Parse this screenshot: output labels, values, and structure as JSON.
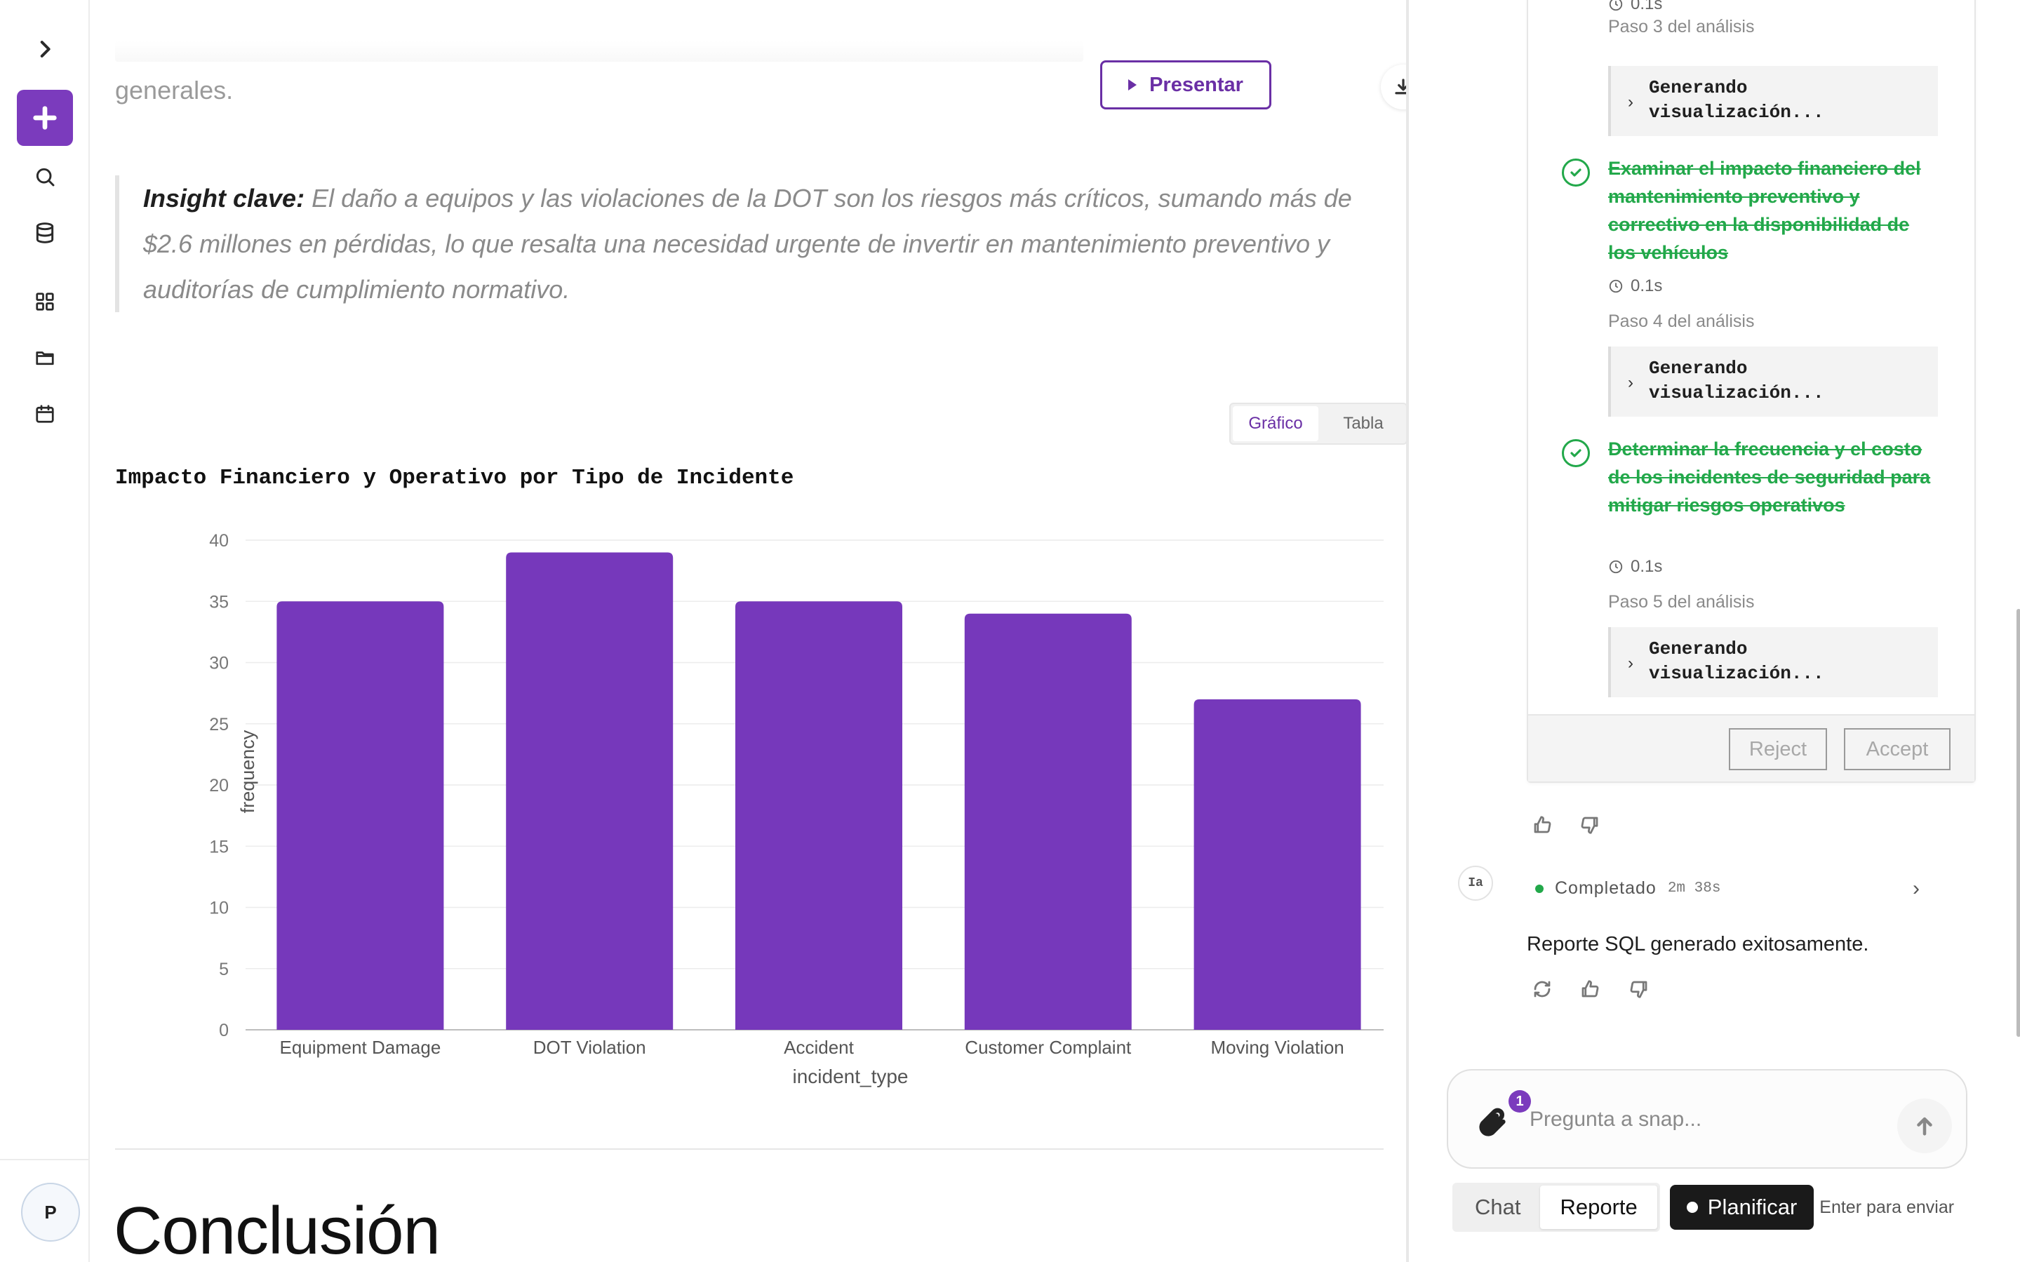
{
  "rail": {
    "avatar_initial": "P"
  },
  "report": {
    "faded_text": "generales.",
    "present_label": "Presentar",
    "insight_lead": "Insight clave:",
    "insight_body": "El daño a equipos y las violaciones de la DOT son los riesgos más críticos, sumando más de $2.6 millones en pérdidas, lo que resalta una necesidad urgente de invertir en mantenimiento preventivo y auditorías de cumplimiento normativo.",
    "view_tabs": [
      "Gráfico",
      "Tabla"
    ],
    "active_view": "Gráfico",
    "conclusion_heading": "Conclusión"
  },
  "chart_data": {
    "type": "bar",
    "title": "Impacto Financiero y Operativo por Tipo de Incidente",
    "xlabel": "incident_type",
    "ylabel": "frequency",
    "categories": [
      "Equipment Damage",
      "DOT Violation",
      "Accident",
      "Customer Complaint",
      "Moving Violation"
    ],
    "values": [
      35,
      39,
      35,
      34,
      27
    ],
    "ylim": [
      0,
      40
    ],
    "yticks": [
      0,
      5,
      10,
      15,
      20,
      25,
      30,
      35,
      40
    ],
    "grid": true,
    "bar_color": "#7638bb"
  },
  "plan": {
    "steps": [
      {
        "duration": "0.1s",
        "label": "Paso 3 del análisis",
        "generating": "Generando\nvisualización..."
      },
      {
        "task": "Examinar el impacto financiero del mantenimiento preventivo y correctivo en la disponibilidad de los vehículos",
        "duration": "0.1s",
        "label": "Paso 4 del análisis",
        "generating": "Generando\nvisualización..."
      },
      {
        "task": "Determinar la frecuencia y el costo de los incidentes de seguridad para mitigar riesgos operativos",
        "duration": "0.1s",
        "label": "Paso 5 del análisis",
        "generating": "Generando\nvisualización..."
      }
    ],
    "reject_label": "Reject",
    "accept_label": "Accept"
  },
  "assistant": {
    "avatar_text": "Ia",
    "status_label": "Completado",
    "status_time": "2m 38s",
    "message": "Reporte SQL generado exitosamente."
  },
  "composer": {
    "placeholder": "Pregunta a snap...",
    "attachment_count": "1",
    "modes": [
      "Chat",
      "Reporte"
    ],
    "active_mode": "Reporte",
    "plan_label": "Planificar",
    "hint": "Enter para enviar"
  },
  "colors": {
    "accent": "#7b3bbd",
    "success": "#22a84a"
  }
}
